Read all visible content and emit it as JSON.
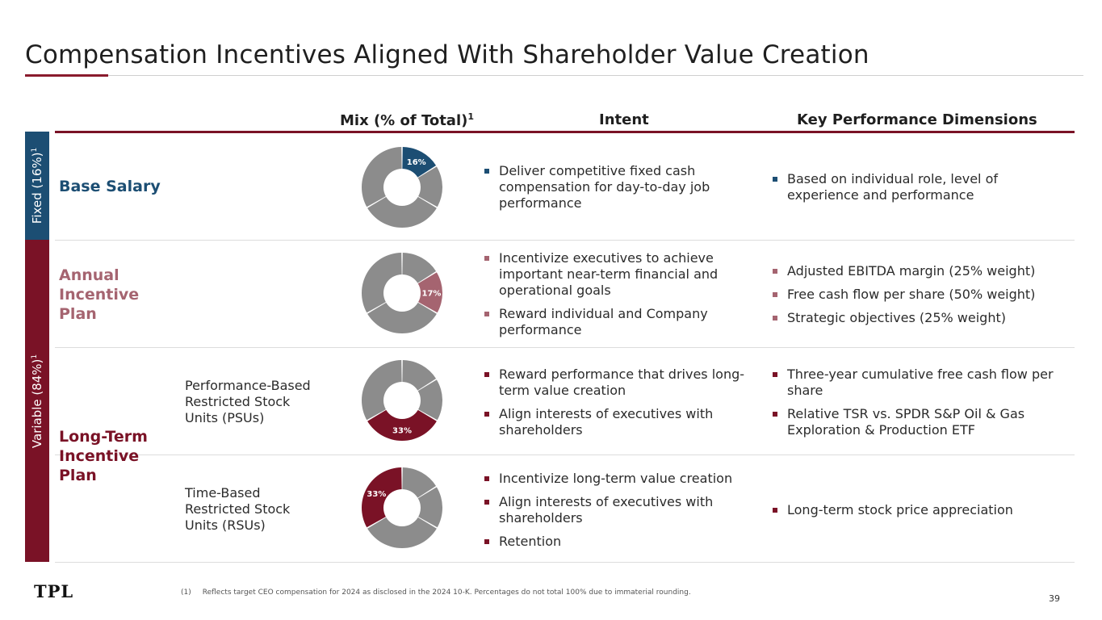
{
  "title": "Compensation Incentives Aligned With Shareholder Value Creation",
  "columns": {
    "mix": "Mix (% of Total)",
    "mix_sup": "1",
    "intent": "Intent",
    "kpd": "Key Performance Dimensions"
  },
  "side": {
    "fixed": "Fixed (16%)",
    "fixed_sup": "1",
    "variable": "Variable (84%)",
    "variable_sup": "1"
  },
  "rows": {
    "base": {
      "label": "Base Salary",
      "pct_label": "16%",
      "intent": [
        [
          "Deliver competitive fixed cash",
          "compensation for day-to-day job",
          "performance"
        ]
      ],
      "kpd": [
        [
          "Based on individual role, level of",
          "experience and performance"
        ]
      ]
    },
    "annual": {
      "label": [
        "Annual",
        "Incentive",
        "Plan"
      ],
      "pct_label": "17%",
      "intent": [
        [
          "Incentivize executives to achieve",
          "important near-term financial and",
          "operational goals"
        ],
        [
          "Reward individual and Company",
          "performance"
        ]
      ],
      "kpd": [
        [
          "Adjusted EBITDA margin (25% weight)"
        ],
        [
          "Free cash flow per share (50% weight)"
        ],
        [
          "Strategic objectives (25% weight)"
        ]
      ]
    },
    "ltip": {
      "label": [
        "Long-Term",
        "Incentive",
        "Plan"
      ]
    },
    "psu": {
      "label": [
        "Performance-Based",
        "Restricted Stock",
        "Units (PSUs)"
      ],
      "pct_label": "33%",
      "intent": [
        [
          "Reward performance that drives long-",
          "term value creation"
        ],
        [
          "Align interests of executives with",
          "shareholders"
        ]
      ],
      "kpd": [
        [
          "Three-year cumulative free cash flow per",
          "share"
        ],
        [
          "Relative TSR vs. SPDR S&P Oil & Gas",
          "Exploration & Production ETF"
        ]
      ]
    },
    "rsu": {
      "label": [
        "Time-Based",
        "Restricted Stock",
        "Units (RSUs)"
      ],
      "pct_label": "33%",
      "intent": [
        [
          "Incentivize long-term value creation"
        ],
        [
          "Align interests of executives with",
          "shareholders"
        ],
        [
          "Retention"
        ]
      ],
      "kpd": [
        [
          "Long-term stock price appreciation"
        ]
      ]
    }
  },
  "chart_data": {
    "type": "pie",
    "title": "",
    "categories": [
      "Base Salary",
      "Annual Incentive Plan",
      "PSUs",
      "RSUs"
    ],
    "values": [
      16,
      17,
      33,
      33
    ],
    "colors": [
      "#1c4e73",
      "#a56470",
      "#7a1226",
      "#7a1226"
    ],
    "other_color": "#8c8c8c"
  },
  "footer": {
    "logo": "TPL",
    "footnote_num": "(1)",
    "footnote": "Reflects target CEO compensation for 2024 as disclosed in the 2024 10-K. Percentages do not total 100% due to immaterial rounding.",
    "page": "39"
  }
}
